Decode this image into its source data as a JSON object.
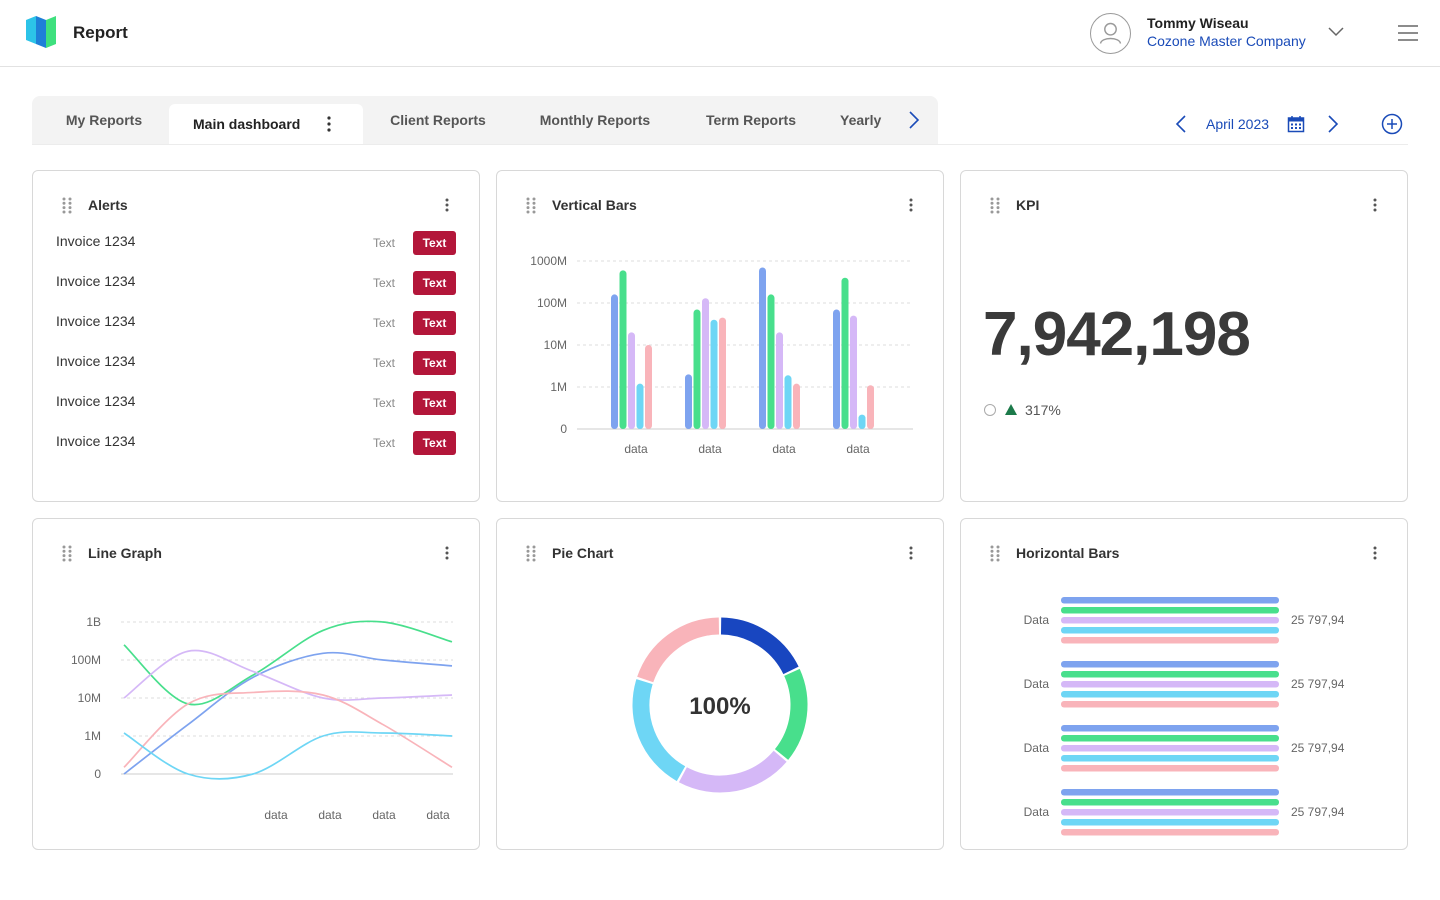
{
  "app": {
    "title": "Report"
  },
  "user": {
    "name": "Tommy Wiseau",
    "company": "Cozone Master Company"
  },
  "tabs": [
    {
      "label": "My Reports"
    },
    {
      "label": "Main dashboard"
    },
    {
      "label": "Client Reports"
    },
    {
      "label": "Monthly Reports"
    },
    {
      "label": "Term Reports"
    },
    {
      "label": "Yearly"
    }
  ],
  "date": {
    "label": "April 2023"
  },
  "colors": {
    "blue": "#7ea3ef",
    "green": "#48df8c",
    "lavender": "#d5b8f7",
    "cyan": "#6ed6f5",
    "pink": "#f9b4ba",
    "navy": "#1846c0",
    "badge": "#b3163a",
    "kpi_arrow": "#1c7a4a"
  },
  "alerts": {
    "title": "Alerts",
    "items": [
      {
        "name": "Invoice 1234",
        "text": "Text",
        "badge": "Text"
      },
      {
        "name": "Invoice 1234",
        "text": "Text",
        "badge": "Text"
      },
      {
        "name": "Invoice 1234",
        "text": "Text",
        "badge": "Text"
      },
      {
        "name": "Invoice 1234",
        "text": "Text",
        "badge": "Text"
      },
      {
        "name": "Invoice 1234",
        "text": "Text",
        "badge": "Text"
      },
      {
        "name": "Invoice 1234",
        "text": "Text",
        "badge": "Text"
      }
    ]
  },
  "kpi": {
    "title": "KPI",
    "value": "7,942,198",
    "change": "317%"
  },
  "vertical_bars": {
    "title": "Vertical Bars"
  },
  "line_graph": {
    "title": "Line Graph"
  },
  "pie_chart": {
    "title": "Pie Chart",
    "center_label": "100%"
  },
  "horizontal_bars": {
    "title": "Horizontal Bars"
  },
  "chart_data": [
    {
      "type": "bar",
      "title": "Vertical Bars",
      "categories": [
        "data",
        "data",
        "data",
        "data"
      ],
      "y_ticks": [
        "0",
        "1M",
        "10M",
        "100M",
        "1000M"
      ],
      "y_scale": "log",
      "ylim": [
        0,
        1000000000
      ],
      "grid": true,
      "series": [
        {
          "name": "blue",
          "color": "#7ea3ef",
          "values": [
            160000000,
            2000000,
            700000000,
            70000000
          ]
        },
        {
          "name": "green",
          "color": "#48df8c",
          "values": [
            600000000,
            70000000,
            160000000,
            400000000
          ]
        },
        {
          "name": "lavender",
          "color": "#d5b8f7",
          "values": [
            20000000,
            130000000,
            20000000,
            50000000
          ]
        },
        {
          "name": "cyan",
          "color": "#6ed6f5",
          "values": [
            1200000,
            40000000,
            1900000,
            220000
          ]
        },
        {
          "name": "pink",
          "color": "#f9b4ba",
          "values": [
            10000000,
            45000000,
            1200000,
            1100000
          ]
        }
      ]
    },
    {
      "type": "line",
      "title": "Line Graph",
      "x_categories": [
        "data",
        "data",
        "data",
        "data"
      ],
      "y_ticks": [
        "0",
        "1M",
        "10M",
        "100M",
        "1B"
      ],
      "y_scale": "log",
      "grid": true,
      "series": [
        {
          "name": "green",
          "color": "#48df8c",
          "points": [
            [
              0,
              250000000
            ],
            [
              1,
              7000000
            ],
            [
              2,
              40000000
            ],
            [
              3,
              600000000
            ],
            [
              4,
              1000000000
            ],
            [
              5,
              300000000
            ]
          ]
        },
        {
          "name": "blue",
          "color": "#7ea3ef",
          "points": [
            [
              0,
              100000
            ],
            [
              1,
              2000000
            ],
            [
              2,
              35000000
            ],
            [
              3,
              150000000
            ],
            [
              4,
              100000000
            ],
            [
              5,
              70000000
            ]
          ]
        },
        {
          "name": "lavender",
          "color": "#d5b8f7",
          "points": [
            [
              0,
              10000000
            ],
            [
              1,
              170000000
            ],
            [
              2,
              50000000
            ],
            [
              3,
              10000000
            ],
            [
              4,
              10000000
            ],
            [
              5,
              12000000
            ]
          ]
        },
        {
          "name": "pink",
          "color": "#f9b4ba",
          "points": [
            [
              0,
              150000
            ],
            [
              1,
              7000000
            ],
            [
              2,
              14000000
            ],
            [
              3,
              12000000
            ],
            [
              4,
              2000000
            ],
            [
              5,
              150000
            ]
          ]
        },
        {
          "name": "cyan",
          "color": "#6ed6f5",
          "points": [
            [
              0,
              1200000
            ],
            [
              1,
              100000
            ],
            [
              2,
              60000
            ],
            [
              3,
              1000000
            ],
            [
              4,
              1200000
            ],
            [
              5,
              1000000
            ]
          ]
        }
      ]
    },
    {
      "type": "pie",
      "title": "Pie Chart",
      "center_label": "100%",
      "slices": [
        {
          "name": "navy",
          "color": "#1846c0",
          "value": 18
        },
        {
          "name": "green",
          "color": "#48df8c",
          "value": 18
        },
        {
          "name": "lavender",
          "color": "#d5b8f7",
          "value": 22
        },
        {
          "name": "cyan",
          "color": "#6ed6f5",
          "value": 22
        },
        {
          "name": "pink",
          "color": "#f9b4ba",
          "value": 20
        }
      ]
    },
    {
      "type": "bar",
      "orientation": "horizontal",
      "title": "Horizontal Bars",
      "categories": [
        "Data",
        "Data",
        "Data",
        "Data"
      ],
      "value_labels": [
        "25 797,94",
        "25 797,94",
        "25 797,94",
        "25 797,94"
      ],
      "series": [
        {
          "name": "blue",
          "color": "#7ea3ef",
          "values": [
            25797.94,
            25797.94,
            25797.94,
            25797.94
          ]
        },
        {
          "name": "green",
          "color": "#48df8c",
          "values": [
            25797.94,
            25797.94,
            25797.94,
            25797.94
          ]
        },
        {
          "name": "lavender",
          "color": "#d5b8f7",
          "values": [
            25797.94,
            25797.94,
            25797.94,
            25797.94
          ]
        },
        {
          "name": "cyan",
          "color": "#6ed6f5",
          "values": [
            25797.94,
            25797.94,
            25797.94,
            25797.94
          ]
        },
        {
          "name": "pink",
          "color": "#f9b4ba",
          "values": [
            25797.94,
            25797.94,
            25797.94,
            25797.94
          ]
        }
      ]
    }
  ]
}
